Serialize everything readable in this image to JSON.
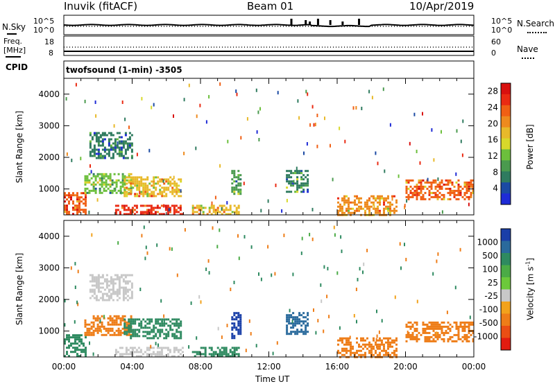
{
  "header": {
    "site": "Inuvik (fitACF)",
    "beam": "Beam 01",
    "date": "10/Apr/2019"
  },
  "noise_panel": {
    "left_label": "N.Sky",
    "left_top_tick": "10^5",
    "left_bottom_tick": "10^0",
    "right_top_tick": "10^5",
    "right_bottom_tick": "10^0",
    "right_label": "N.Search"
  },
  "freq_panel": {
    "left_label_line1": "Freq.",
    "left_label_line2": "[MHz]",
    "left_top_tick": "18",
    "left_bottom_tick": "8",
    "right_top_tick": "60",
    "right_bottom_tick": "0",
    "right_label": "Nave",
    "cpid_label": "CPID",
    "cpid_value": "twofsound (1-min) -3505"
  },
  "colors": {
    "power_scale": [
      "#1e2bd6",
      "#1b4aa3",
      "#2f7b5f",
      "#4a9a4e",
      "#6cbf3c",
      "#d8d82b",
      "#e8b92a",
      "#ee8a1e",
      "#f05f14",
      "#ea2a12",
      "#d8100e"
    ],
    "velocity_scale": [
      "#1a3fa8",
      "#2a6a9c",
      "#2e8a60",
      "#4bab46",
      "#6cc93b",
      "#c8c8c8",
      "#f2a21c",
      "#ee7d18",
      "#ea4e14",
      "#e21c10"
    ]
  },
  "chart_data": [
    {
      "type": "heatmap",
      "title": "Power",
      "ylabel": "Slant Range [km]",
      "xlabel": "",
      "x_ticks": [
        "00:00",
        "04:00",
        "08:00",
        "12:00",
        "16:00",
        "20:00",
        "00:00"
      ],
      "y_ticks": [
        "1000",
        "2000",
        "3000",
        "4000"
      ],
      "ylim": [
        180,
        4500
      ],
      "xlim_hours": [
        0,
        24
      ],
      "colorbar_label": "Power [dB]",
      "colorbar_ticks": [
        "4",
        "8",
        "12",
        "16",
        "20",
        "24",
        "28"
      ],
      "colorbar_range": [
        0,
        30
      ],
      "regions": [
        {
          "t0": 0.0,
          "t1": 1.3,
          "r0": 200,
          "r1": 900,
          "level": 24
        },
        {
          "t0": 1.2,
          "t1": 4.0,
          "r0": 900,
          "r1": 1500,
          "level": 12
        },
        {
          "t0": 1.5,
          "t1": 4.0,
          "r0": 2000,
          "r1": 2800,
          "level": 6
        },
        {
          "t0": 3.5,
          "t1": 6.8,
          "r0": 800,
          "r1": 1400,
          "level": 18
        },
        {
          "t0": 3.0,
          "t1": 7.0,
          "r0": 200,
          "r1": 500,
          "level": 26
        },
        {
          "t0": 7.5,
          "t1": 10.3,
          "r0": 200,
          "r1": 500,
          "level": 18
        },
        {
          "t0": 9.8,
          "t1": 10.4,
          "r0": 800,
          "r1": 1600,
          "level": 10
        },
        {
          "t0": 13.0,
          "t1": 14.3,
          "r0": 900,
          "r1": 1600,
          "level": 8
        },
        {
          "t0": 16.0,
          "t1": 19.5,
          "r0": 200,
          "r1": 800,
          "level": 20
        },
        {
          "t0": 20.0,
          "t1": 24.0,
          "r0": 700,
          "r1": 1300,
          "level": 22
        }
      ]
    },
    {
      "type": "heatmap",
      "title": "Velocity",
      "ylabel": "Slant Range [km]",
      "xlabel": "Time UT",
      "x_ticks": [
        "00:00",
        "04:00",
        "08:00",
        "12:00",
        "16:00",
        "20:00",
        "00:00"
      ],
      "y_ticks": [
        "1000",
        "2000",
        "3000",
        "4000"
      ],
      "ylim": [
        180,
        4500
      ],
      "xlim_hours": [
        0,
        24
      ],
      "colorbar_label": "Velocity [m s^-1]",
      "colorbar_ticks": [
        "1000",
        "500",
        "100",
        "25",
        "-25",
        "-100",
        "-500",
        "-1000"
      ],
      "regions": [
        {
          "t0": 0.0,
          "t1": 1.3,
          "r0": 200,
          "r1": 900,
          "level": 100
        },
        {
          "t0": 1.2,
          "t1": 4.0,
          "r0": 900,
          "r1": 1500,
          "level": -100
        },
        {
          "t0": 1.5,
          "t1": 4.0,
          "r0": 2000,
          "r1": 2800,
          "level": 0
        },
        {
          "t0": 3.5,
          "t1": 6.8,
          "r0": 800,
          "r1": 1400,
          "level": 100
        },
        {
          "t0": 3.0,
          "t1": 7.0,
          "r0": 200,
          "r1": 500,
          "level": 0
        },
        {
          "t0": 7.5,
          "t1": 10.3,
          "r0": 200,
          "r1": 500,
          "level": 100
        },
        {
          "t0": 9.8,
          "t1": 10.4,
          "r0": 800,
          "r1": 1600,
          "level": 1000
        },
        {
          "t0": 13.0,
          "t1": 14.3,
          "r0": 900,
          "r1": 1600,
          "level": 500
        },
        {
          "t0": 16.0,
          "t1": 19.5,
          "r0": 200,
          "r1": 800,
          "level": -100
        },
        {
          "t0": 20.0,
          "t1": 24.0,
          "r0": 700,
          "r1": 1300,
          "level": -100
        }
      ]
    }
  ]
}
